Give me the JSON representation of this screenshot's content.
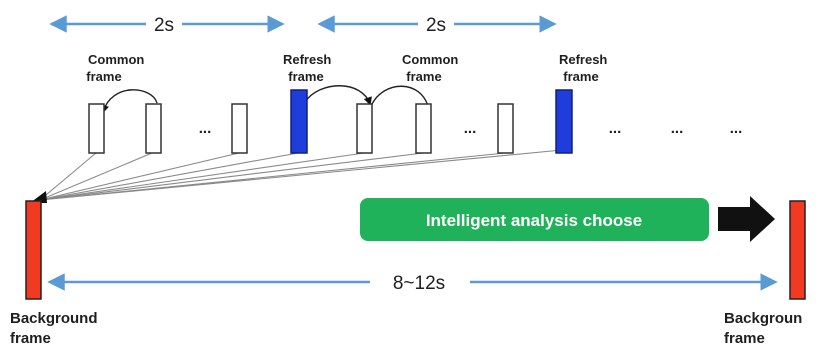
{
  "interval_top_left": "2s",
  "interval_top_right": "2s",
  "interval_bottom": "8~12s",
  "common_frame_label_1": [
    "Common",
    "frame"
  ],
  "refresh_frame_label_1": [
    "Refresh",
    "frame"
  ],
  "common_frame_label_2": [
    "Common",
    "frame"
  ],
  "refresh_frame_label_2": [
    "Refresh",
    "frame"
  ],
  "background_frame_left": [
    "Background",
    "frame"
  ],
  "background_frame_right": [
    "Backgroun",
    "frame"
  ],
  "ellipsis": "...",
  "analysis_button": "Intelligent analysis choose",
  "colors": {
    "interval_arrow": "#5b9bd5",
    "refresh_frame": "#1e3ddb",
    "background_frame": "#f03b22",
    "analysis_box": "#1fb25a",
    "big_arrow": "#111111"
  }
}
